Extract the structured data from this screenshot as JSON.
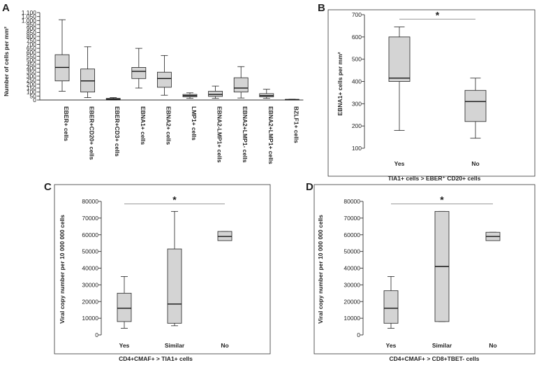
{
  "panels": [
    {
      "id": "A",
      "letter": "A",
      "ylabel": "Number of cells per mm²",
      "xlabel": "",
      "ylim": [
        0,
        1100
      ],
      "yticks": [
        0,
        50,
        100,
        150,
        200,
        250,
        300,
        350,
        400,
        450,
        500,
        550,
        600,
        650,
        700,
        750,
        800,
        850,
        900,
        950,
        1000,
        1050,
        1100
      ],
      "ytick_labels": [
        "0",
        "50",
        "100",
        "150",
        "200",
        "250",
        "300",
        "350",
        "400",
        "450",
        "500",
        "550",
        "600",
        "650",
        "700",
        "750",
        "800",
        "850",
        "900",
        "950",
        "1.000",
        "1.050",
        "1.100"
      ],
      "significance": null
    },
    {
      "id": "B",
      "letter": "B",
      "ylabel": "EBNA1+ cells per mm²",
      "xlabel": "TIA1+ cells > EBER⁺ CD20+ cells",
      "ylim": [
        100,
        700
      ],
      "yticks": [
        100,
        200,
        300,
        400,
        500,
        600,
        700
      ],
      "ytick_labels": [
        "100",
        "200",
        "300",
        "400",
        "500",
        "600",
        "700"
      ],
      "significance": {
        "from": 0,
        "to": 1,
        "y": 680,
        "mark": "*"
      }
    },
    {
      "id": "C",
      "letter": "C",
      "ylabel": "Viral copy number per 10 000 000 cells",
      "xlabel": "CD4+CMAF+ > TIA1+ cells",
      "ylim": [
        0,
        80000
      ],
      "yticks": [
        0,
        10000,
        20000,
        30000,
        40000,
        50000,
        60000,
        70000,
        80000
      ],
      "ytick_labels": [
        "0",
        "10000",
        "20000",
        "30000",
        "40000",
        "50000",
        "60000",
        "70000",
        "80000"
      ],
      "significance": {
        "from": 0,
        "to": 2,
        "y": 78500,
        "mark": "*"
      }
    },
    {
      "id": "D",
      "letter": "D",
      "ylabel": "Viral copy number per 10 000 000 cells",
      "xlabel": "CD4+CMAF+ > CD8+TBET- cells",
      "ylim": [
        0,
        80000
      ],
      "yticks": [
        0,
        10000,
        20000,
        30000,
        40000,
        50000,
        60000,
        70000,
        80000
      ],
      "ytick_labels": [
        "0",
        "10000",
        "20000",
        "30000",
        "40000",
        "50000",
        "60000",
        "70000",
        "80000"
      ],
      "significance": {
        "from": 0,
        "to": 2,
        "y": 78500,
        "mark": "*"
      }
    }
  ],
  "chart_data": [
    {
      "type": "box",
      "panel": "A",
      "title": "",
      "ylabel": "Number of cells per mm²",
      "ylim": [
        0,
        1100
      ],
      "categories": [
        "EBER+ cells",
        "EBER+CD20+ cells",
        "EBER+CD3+ cells",
        "EBNA1+ cells",
        "EBNA2+ cells",
        "LMP1+ cells",
        "EBNA2-LMP1+ cells",
        "EBNA2+LMP1- cells",
        "EBNA2+LMP1+ cells",
        "BZLF1+ cells"
      ],
      "boxes": [
        {
          "min": 110,
          "q1": 240,
          "median": 410,
          "q3": 570,
          "max": 1010
        },
        {
          "min": 30,
          "q1": 100,
          "median": 240,
          "q3": 390,
          "max": 670
        },
        {
          "min": 0,
          "q1": 5,
          "median": 10,
          "q3": 20,
          "max": 30
        },
        {
          "min": 150,
          "q1": 270,
          "median": 360,
          "q3": 410,
          "max": 650
        },
        {
          "min": 60,
          "q1": 160,
          "median": 270,
          "q3": 350,
          "max": 560
        },
        {
          "min": 20,
          "q1": 40,
          "median": 55,
          "q3": 70,
          "max": 90
        },
        {
          "min": 20,
          "q1": 45,
          "median": 70,
          "q3": 110,
          "max": 175
        },
        {
          "min": 25,
          "q1": 100,
          "median": 150,
          "q3": 280,
          "max": 420
        },
        {
          "min": 20,
          "q1": 40,
          "median": 55,
          "q3": 80,
          "max": 135
        },
        {
          "min": 0,
          "q1": 3,
          "median": 5,
          "q3": 7,
          "max": 10
        }
      ]
    },
    {
      "type": "box",
      "panel": "B",
      "xlabel": "TIA1+ cells > EBER⁺ CD20+ cells",
      "ylabel": "EBNA1+ cells per mm²",
      "ylim": [
        100,
        700
      ],
      "categories": [
        "Yes",
        "No"
      ],
      "boxes": [
        {
          "min": 180,
          "q1": 400,
          "median": 415,
          "q3": 600,
          "max": 645
        },
        {
          "min": 145,
          "q1": 220,
          "median": 310,
          "q3": 360,
          "max": 415
        }
      ]
    },
    {
      "type": "box",
      "panel": "C",
      "xlabel": "CD4+CMAF+ > TIA1+ cells",
      "ylabel": "Viral copy number per 10 000 000 cells",
      "ylim": [
        0,
        80000
      ],
      "categories": [
        "Yes",
        "Similar",
        "No"
      ],
      "boxes": [
        {
          "min": 4000,
          "q1": 8000,
          "median": 16000,
          "q3": 25000,
          "max": 35000
        },
        {
          "min": 5500,
          "q1": 7000,
          "median": 18500,
          "q3": 51500,
          "max": 74000
        },
        {
          "min": 56500,
          "q1": 56500,
          "median": 59000,
          "q3": 62000,
          "max": 62000
        }
      ]
    },
    {
      "type": "box",
      "panel": "D",
      "xlabel": "CD4+CMAF+ > CD8+TBET- cells",
      "ylabel": "Viral copy number per 10 000 000 cells",
      "ylim": [
        0,
        80000
      ],
      "categories": [
        "Yes",
        "Similar",
        "No"
      ],
      "boxes": [
        {
          "min": 4000,
          "q1": 7000,
          "median": 16000,
          "q3": 26500,
          "max": 35000
        },
        {
          "min": 8000,
          "q1": 8000,
          "median": 41000,
          "q3": 74000,
          "max": 74000
        },
        {
          "min": 56500,
          "q1": 56500,
          "median": 59000,
          "q3": 61500,
          "max": 61500
        }
      ]
    }
  ]
}
